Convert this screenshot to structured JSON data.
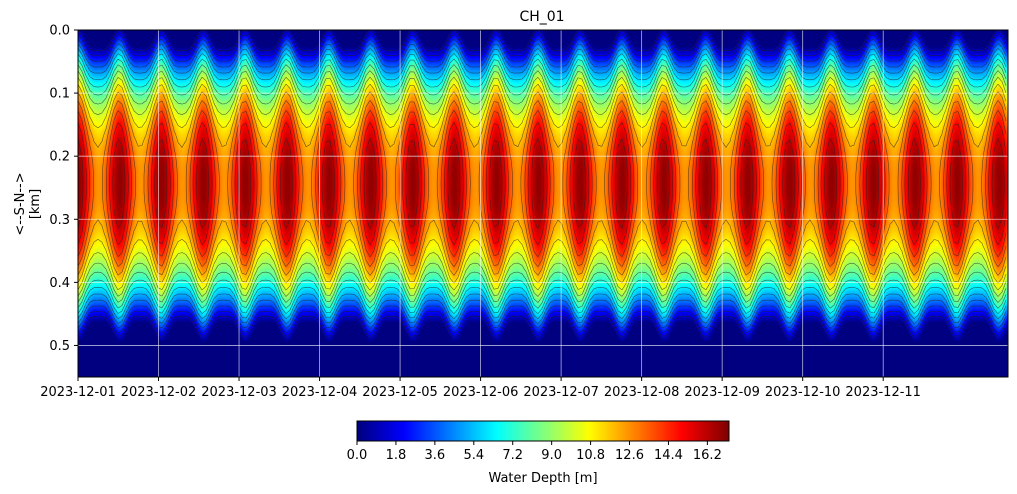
{
  "chart_data": {
    "type": "heatmap",
    "title": "CH_01",
    "xlabel": "",
    "ylabel": "<--S-N-->\n[km]",
    "x_tick_labels": [
      "2023-12-01",
      "2023-12-02",
      "2023-12-03",
      "2023-12-04",
      "2023-12-05",
      "2023-12-06",
      "2023-12-07",
      "2023-12-08",
      "2023-12-09",
      "2023-12-10",
      "2023-12-11"
    ],
    "x_range_days": [
      0,
      11.55
    ],
    "y_tick_labels": [
      "0.0",
      "0.1",
      "0.2",
      "0.3",
      "0.4",
      "0.5"
    ],
    "y_ticks": [
      0.0,
      0.1,
      0.2,
      0.3,
      0.4,
      0.5
    ],
    "ylim": [
      0.0,
      0.55
    ],
    "y_inverted": true,
    "grid": true,
    "colormap": "jet",
    "colorbar": {
      "label": "Water Depth [m]",
      "min": 0.0,
      "max": 17.2,
      "tick_labels": [
        "0.0",
        "1.8",
        "3.6",
        "5.4",
        "7.2",
        "9.0",
        "10.8",
        "12.6",
        "14.4",
        "16.2"
      ],
      "ticks": [
        0.0,
        1.8,
        3.6,
        5.4,
        7.2,
        9.0,
        10.8,
        12.6,
        14.4,
        16.2
      ],
      "placement": "bottom"
    },
    "contour_levels": [
      1,
      2,
      3,
      4,
      5,
      6,
      7,
      8,
      9,
      10,
      11,
      12,
      13,
      14,
      15,
      16
    ],
    "field": {
      "peak_depth_m": 16.9,
      "centre_km": 0.245,
      "tidal_period_days": 0.52,
      "tidal_amplitude_m": 2.2
    }
  }
}
